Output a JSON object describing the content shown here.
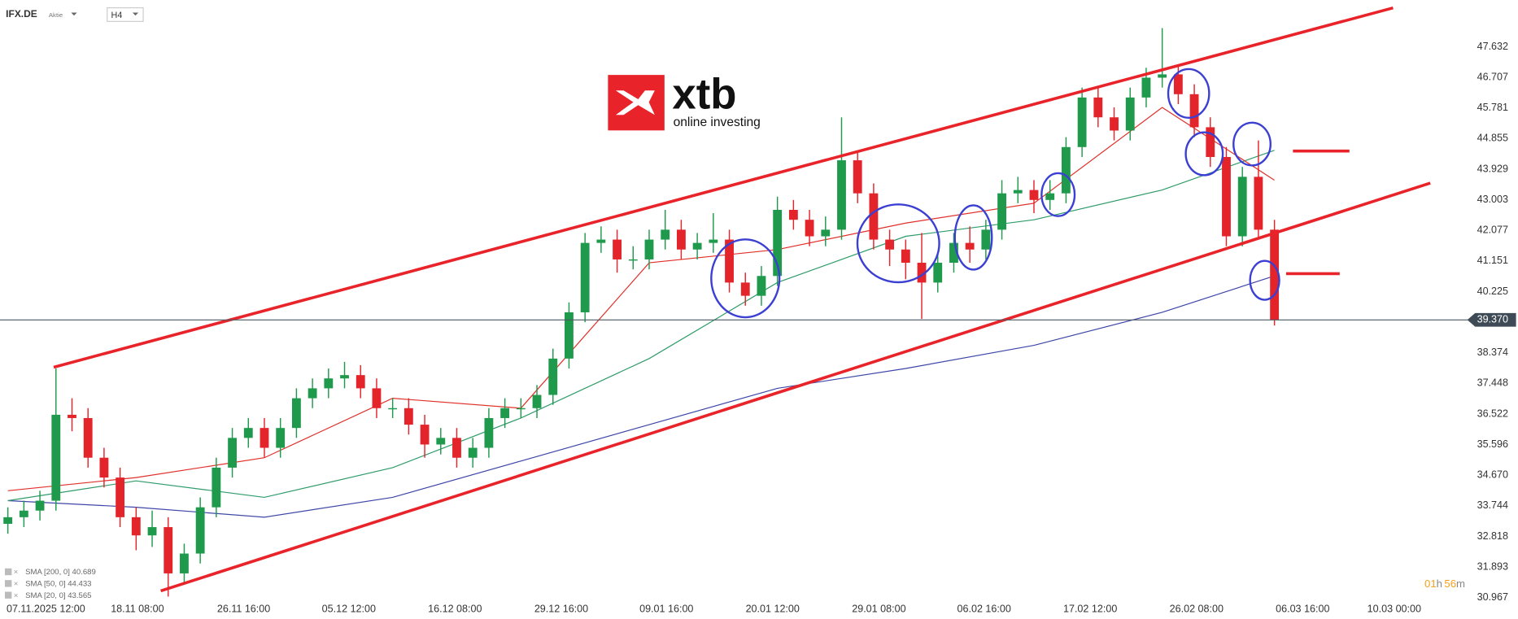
{
  "header": {
    "symbol": "IFX.DE",
    "instrument_type": "Aktie",
    "timeframe": "H4"
  },
  "logo": {
    "brand": "xtb",
    "tagline": "online investing"
  },
  "timer": [
    "01",
    "h",
    "56",
    "m"
  ],
  "chart_data": {
    "type": "candlestick",
    "xlim": [
      -0.49,
      90.97
    ],
    "ylim": [
      30.85,
      49.05
    ],
    "xticks": [
      {
        "value": 2.37,
        "label": "07.11.2025 12:00"
      },
      {
        "value": 8.08,
        "label": "18.11 08:00"
      },
      {
        "value": 14.71,
        "label": "26.11 16:00"
      },
      {
        "value": 21.27,
        "label": "05.12 12:00"
      },
      {
        "value": 27.89,
        "label": "16.12 08:00"
      },
      {
        "value": 34.52,
        "label": "29.12 16:00"
      },
      {
        "value": 41.08,
        "label": "09.01 16:00"
      },
      {
        "value": 47.7,
        "label": "20.01 12:00"
      },
      {
        "value": 54.33,
        "label": "29.01 08:00"
      },
      {
        "value": 60.89,
        "label": "06.02 16:00"
      },
      {
        "value": 67.51,
        "label": "17.02 12:00"
      },
      {
        "value": 74.14,
        "label": "26.02 08:00"
      },
      {
        "value": 80.76,
        "label": "06.03 16:00"
      },
      {
        "value": 86.47,
        "label": "10.03 00:00"
      }
    ],
    "yticks": [
      47.632,
      46.707,
      45.781,
      44.855,
      43.929,
      43.003,
      42.077,
      41.151,
      40.225,
      38.374,
      37.448,
      36.522,
      35.596,
      {
        "value": 34.67,
        "label": "34.670"
      },
      33.744,
      32.818,
      31.893,
      30.967
    ],
    "up_color": "#1f9a4c",
    "down_color": "#e3242b",
    "open": [
      33.2,
      33.4,
      33.6,
      33.9,
      36.5,
      36.4,
      35.2,
      34.6,
      33.4,
      32.85,
      33.1,
      31.7,
      32.3,
      33.7,
      34.9,
      35.8,
      36.1,
      35.5,
      36.1,
      37.0,
      37.3,
      37.6,
      37.7,
      37.3,
      36.7,
      36.7,
      36.2,
      35.6,
      35.8,
      35.2,
      35.5,
      36.4,
      36.7,
      36.7,
      37.1,
      38.2,
      39.6,
      41.7,
      41.8,
      41.2,
      41.2,
      41.8,
      42.1,
      41.5,
      41.7,
      41.8,
      40.5,
      40.1,
      40.7,
      42.7,
      42.4,
      41.9,
      42.1,
      44.2,
      43.2,
      41.8,
      41.5,
      41.1,
      40.5,
      41.1,
      41.7,
      41.5,
      42.1,
      43.2,
      43.3,
      43.0,
      43.2,
      44.6,
      46.1,
      45.5,
      45.1,
      46.1,
      46.7,
      46.8,
      46.2,
      45.2,
      44.3,
      41.9,
      43.7,
      42.1
    ],
    "high": [
      33.7,
      33.9,
      34.2,
      37.9,
      37.0,
      36.7,
      35.5,
      34.9,
      33.7,
      33.6,
      33.4,
      32.6,
      34.0,
      35.2,
      36.1,
      36.4,
      36.4,
      36.4,
      37.3,
      37.6,
      37.9,
      38.1,
      38.0,
      37.6,
      37.0,
      37.0,
      36.5,
      36.1,
      36.1,
      35.8,
      36.7,
      37.0,
      37.0,
      37.4,
      38.5,
      39.9,
      42.0,
      42.2,
      42.1,
      41.6,
      42.1,
      42.7,
      42.4,
      42.0,
      42.6,
      42.1,
      40.8,
      41.0,
      43.1,
      43.0,
      42.7,
      42.5,
      45.5,
      44.5,
      43.5,
      42.1,
      41.8,
      42.0,
      41.4,
      42.0,
      42.2,
      42.4,
      43.6,
      43.7,
      43.6,
      43.6,
      44.9,
      46.4,
      46.4,
      45.8,
      46.4,
      47.0,
      48.2,
      47.1,
      46.5,
      45.5,
      44.6,
      44.0,
      44.8,
      42.4
    ],
    "low": [
      32.9,
      33.1,
      33.3,
      33.6,
      36.0,
      34.9,
      34.3,
      33.1,
      32.4,
      32.5,
      31.0,
      31.4,
      32.0,
      33.4,
      34.6,
      35.5,
      35.2,
      35.2,
      35.8,
      36.7,
      37.0,
      37.3,
      37.0,
      36.4,
      36.4,
      35.9,
      35.2,
      35.3,
      34.9,
      34.9,
      35.2,
      36.1,
      36.4,
      36.4,
      36.8,
      37.9,
      39.3,
      41.4,
      40.8,
      40.9,
      40.9,
      41.5,
      41.2,
      41.2,
      41.4,
      40.2,
      39.8,
      39.8,
      40.4,
      42.1,
      41.6,
      41.6,
      41.8,
      42.9,
      41.5,
      41.0,
      40.6,
      39.4,
      40.2,
      40.8,
      41.1,
      41.2,
      41.8,
      42.9,
      42.6,
      42.7,
      42.9,
      44.3,
      45.2,
      44.8,
      44.8,
      45.8,
      46.4,
      45.9,
      44.9,
      44.0,
      41.6,
      41.6,
      41.8,
      39.2
    ],
    "close": [
      33.4,
      33.6,
      33.9,
      36.5,
      36.4,
      35.2,
      34.6,
      33.4,
      32.85,
      33.1,
      31.7,
      32.3,
      33.7,
      34.9,
      35.8,
      36.1,
      35.5,
      36.1,
      37.0,
      37.3,
      37.6,
      37.7,
      37.3,
      36.7,
      36.7,
      36.2,
      35.6,
      35.8,
      35.2,
      35.5,
      36.4,
      36.7,
      36.7,
      37.1,
      38.2,
      39.6,
      41.7,
      41.8,
      41.2,
      41.2,
      41.8,
      42.1,
      41.5,
      41.7,
      41.8,
      40.5,
      40.1,
      40.7,
      42.7,
      42.4,
      41.9,
      42.1,
      44.2,
      43.2,
      41.8,
      41.5,
      41.1,
      40.5,
      41.1,
      41.7,
      41.5,
      42.1,
      43.2,
      43.3,
      43.0,
      43.2,
      44.6,
      46.1,
      45.5,
      45.1,
      46.1,
      46.7,
      46.8,
      46.2,
      45.2,
      44.3,
      41.9,
      43.7,
      42.1,
      39.37
    ],
    "series": [
      {
        "name": "SMA [200, 0] 40.689",
        "color": "#3d46a8",
        "x": [
          0,
          8,
          16,
          24,
          32,
          40,
          48,
          56,
          64,
          72,
          79
        ],
        "values": [
          33.9,
          33.7,
          33.4,
          34.0,
          35.1,
          36.2,
          37.3,
          37.9,
          38.6,
          39.6,
          40.7
        ]
      },
      {
        "name": "SMA [50, 0] 44.433",
        "color": "#2f9b6a",
        "x": [
          0,
          8,
          16,
          24,
          32,
          40,
          48,
          56,
          64,
          72,
          79
        ],
        "values": [
          33.9,
          34.5,
          34.0,
          34.9,
          36.4,
          38.2,
          40.5,
          41.9,
          42.4,
          43.3,
          44.5
        ]
      },
      {
        "name": "SMA [20, 0] 43.565",
        "color": "#e0302a",
        "x": [
          0,
          8,
          16,
          24,
          32,
          40,
          48,
          56,
          64,
          72,
          79
        ],
        "values": [
          34.2,
          34.6,
          35.2,
          37.0,
          36.7,
          41.1,
          41.5,
          42.3,
          42.9,
          45.8,
          43.6
        ]
      }
    ],
    "trendlines": [
      {
        "color": "#e8242a",
        "x": [
          2.86,
          86.4
        ],
        "values": [
          37.94,
          48.81
        ]
      },
      {
        "color": "#e8242a",
        "x": [
          9.54,
          88.72
        ],
        "values": [
          31.17,
          43.51
        ]
      },
      {
        "color": "#e8242a",
        "x": [
          80.15,
          83.68
        ],
        "values": [
          44.48,
          44.48
        ]
      },
      {
        "color": "#e8242a",
        "x": [
          79.73,
          83.07
        ],
        "values": [
          40.77,
          40.77
        ]
      }
    ],
    "last_price": {
      "value": 39.37,
      "label": "39.370"
    }
  }
}
